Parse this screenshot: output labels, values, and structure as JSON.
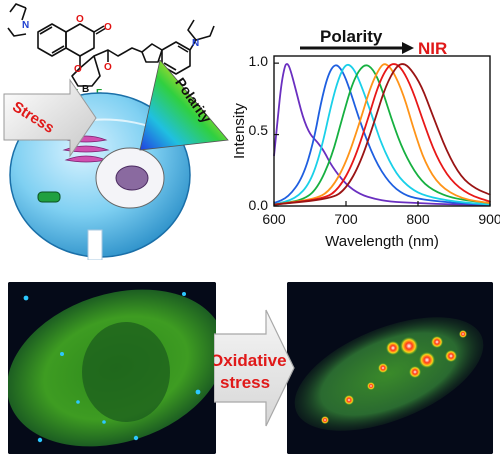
{
  "molecule": {
    "atoms": [
      "N",
      "O",
      "O",
      "O",
      "B",
      "F",
      "F",
      "O",
      "N"
    ]
  },
  "cell_panel": {
    "stress_label": "Stress",
    "polarity_label": "Polarity"
  },
  "chart_data": {
    "type": "line",
    "xlabel": "Wavelength (nm)",
    "ylabel": "Intensity",
    "xlim": [
      600,
      900
    ],
    "ylim": [
      0,
      1.05
    ],
    "xticks": [
      "600",
      "700",
      "800",
      "900"
    ],
    "yticks": [
      "0.0",
      "0.5",
      "1.0"
    ],
    "annotation_polarity": "Polarity",
    "annotation_nir": "NIR",
    "grid": false,
    "series": [
      {
        "color": "#6a2fc0",
        "peak": 618,
        "x": [
          600,
          605,
          610,
          615,
          618,
          622,
          630,
          640,
          650,
          660,
          670,
          680,
          700,
          720,
          740,
          760,
          800,
          850,
          900
        ],
        "values": [
          0.35,
          0.6,
          0.85,
          0.98,
          1.0,
          0.97,
          0.82,
          0.62,
          0.5,
          0.45,
          0.38,
          0.28,
          0.15,
          0.08,
          0.05,
          0.03,
          0.02,
          0.01,
          0.01
        ]
      },
      {
        "color": "#1e5fe0",
        "peak": 685,
        "x": [
          600,
          620,
          640,
          655,
          665,
          675,
          685,
          695,
          705,
          720,
          740,
          760,
          780,
          800,
          850,
          900
        ],
        "values": [
          0.02,
          0.06,
          0.2,
          0.45,
          0.72,
          0.92,
          1.0,
          0.95,
          0.82,
          0.58,
          0.32,
          0.16,
          0.08,
          0.05,
          0.02,
          0.01
        ]
      },
      {
        "color": "#1ad0e8",
        "peak": 700,
        "x": [
          600,
          630,
          650,
          665,
          680,
          690,
          700,
          710,
          720,
          735,
          750,
          770,
          790,
          810,
          850,
          900
        ],
        "values": [
          0.01,
          0.05,
          0.16,
          0.38,
          0.72,
          0.9,
          1.0,
          0.97,
          0.86,
          0.65,
          0.42,
          0.22,
          0.12,
          0.07,
          0.03,
          0.01
        ]
      },
      {
        "color": "#16b040",
        "peak": 725,
        "x": [
          600,
          640,
          660,
          680,
          695,
          710,
          725,
          738,
          750,
          765,
          780,
          800,
          820,
          850,
          900
        ],
        "values": [
          0.01,
          0.04,
          0.12,
          0.34,
          0.62,
          0.88,
          1.0,
          0.96,
          0.82,
          0.58,
          0.38,
          0.2,
          0.11,
          0.05,
          0.02
        ]
      },
      {
        "color": "#ff9418",
        "peak": 755,
        "x": [
          600,
          660,
          680,
          700,
          720,
          735,
          748,
          755,
          765,
          780,
          795,
          810,
          830,
          860,
          900
        ],
        "values": [
          0.01,
          0.05,
          0.12,
          0.3,
          0.6,
          0.85,
          0.98,
          1.0,
          0.95,
          0.78,
          0.52,
          0.3,
          0.14,
          0.05,
          0.02
        ]
      },
      {
        "color": "#e81818",
        "peak": 768,
        "x": [
          600,
          670,
          690,
          710,
          730,
          745,
          758,
          768,
          778,
          792,
          808,
          825,
          845,
          870,
          900
        ],
        "values": [
          0.01,
          0.05,
          0.12,
          0.3,
          0.6,
          0.85,
          0.98,
          1.0,
          0.96,
          0.82,
          0.58,
          0.35,
          0.18,
          0.08,
          0.03
        ]
      },
      {
        "color": "#9a1414",
        "peak": 780,
        "x": [
          600,
          680,
          700,
          720,
          740,
          755,
          770,
          780,
          790,
          805,
          820,
          840,
          860,
          880,
          900
        ],
        "values": [
          0.01,
          0.05,
          0.12,
          0.3,
          0.6,
          0.84,
          0.98,
          1.0,
          0.96,
          0.84,
          0.64,
          0.38,
          0.2,
          0.12,
          0.08
        ]
      }
    ]
  },
  "transition": {
    "line1": "Oxidative",
    "line2": "stress"
  }
}
